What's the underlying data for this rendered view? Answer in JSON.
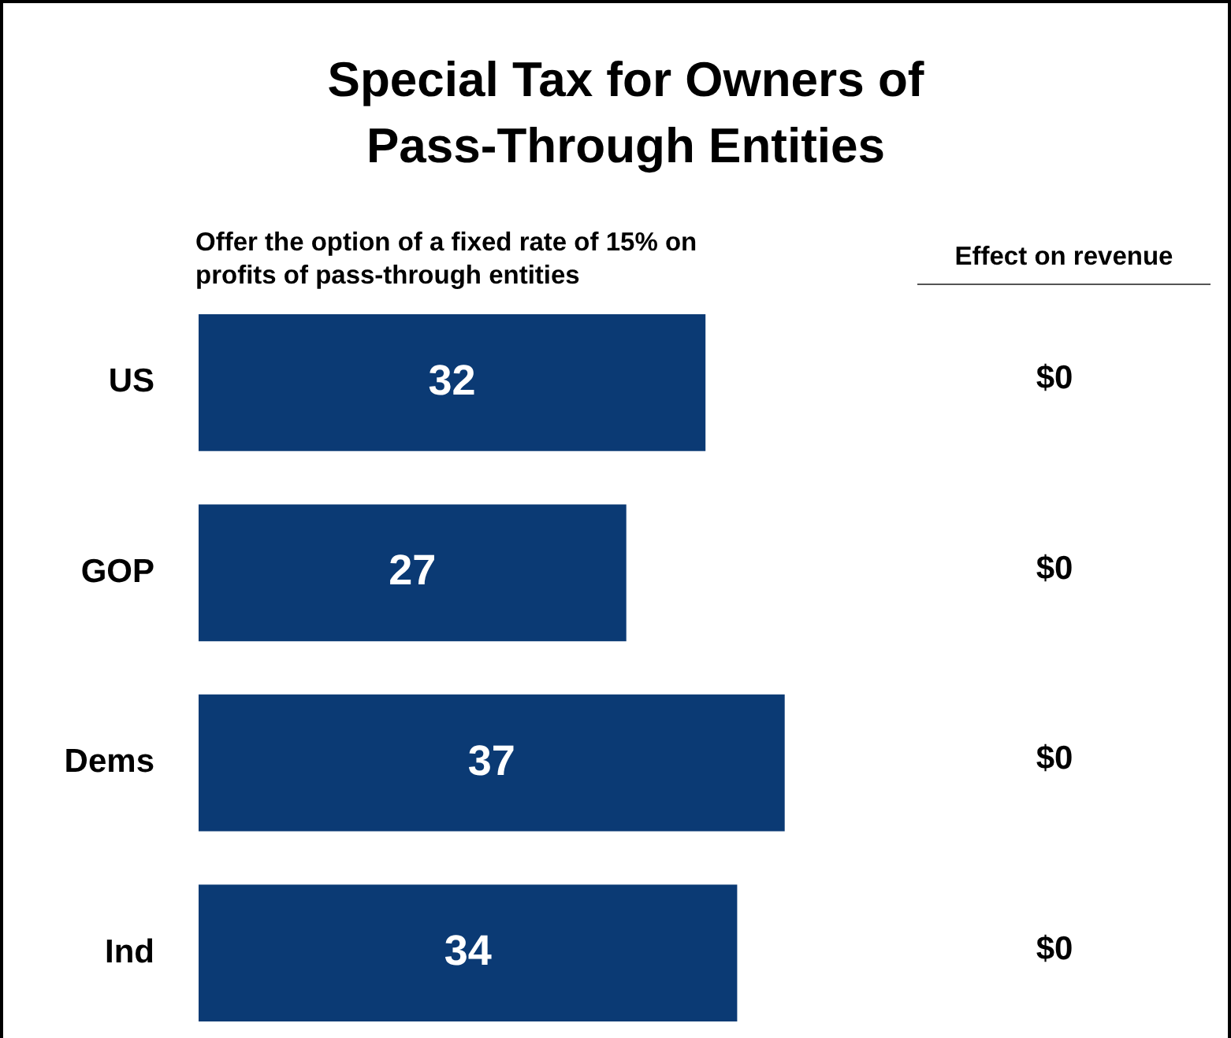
{
  "chart_data": {
    "type": "bar",
    "orientation": "horizontal",
    "title": "Special Tax for Owners of Pass-Through Entities",
    "subtitle": "Offer the option of a fixed rate of 15% on profits of pass-through entities",
    "categories": [
      "US",
      "GOP",
      "Dems",
      "Ind"
    ],
    "values": [
      32,
      27,
      37,
      34
    ],
    "color": "#0b3a74",
    "data_labels": true,
    "legend": false,
    "annotations": [
      "Effect on revenue",
      "$0",
      "$0",
      "$0",
      "$0"
    ]
  }
}
